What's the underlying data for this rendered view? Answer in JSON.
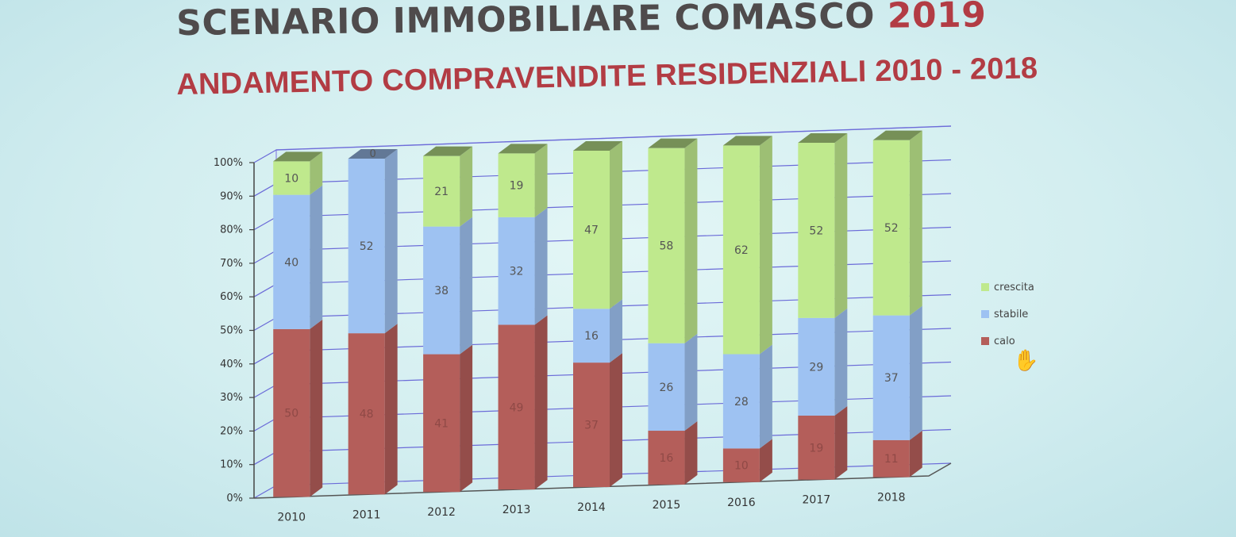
{
  "page": {
    "title_main": "SCENARIO IMMOBILIARE COMASCO",
    "title_year": "2019",
    "subtitle": "ANDAMENTO COMPRAVENDITE RESIDENZIALI 2010 - 2018"
  },
  "chart_data": {
    "type": "bar",
    "stacked": true,
    "percent_stacked": true,
    "three_d": true,
    "categories": [
      "2010",
      "2011",
      "2012",
      "2013",
      "2014",
      "2015",
      "2016",
      "2017",
      "2018"
    ],
    "series": [
      {
        "name": "calo",
        "values": [
          50,
          48,
          41,
          49,
          37,
          16,
          10,
          19,
          11
        ],
        "color": "#b45e5a",
        "label_color": "#8f4946"
      },
      {
        "name": "stabile",
        "values": [
          40,
          52,
          38,
          32,
          16,
          26,
          28,
          29,
          37
        ],
        "color": "#9ec2f2",
        "label_color": "#555555"
      },
      {
        "name": "crescita",
        "values": [
          10,
          0,
          21,
          19,
          47,
          58,
          62,
          52,
          52
        ],
        "color": "#bfe98d",
        "label_color": "#555555"
      }
    ],
    "yticks": [
      "0%",
      "10%",
      "20%",
      "30%",
      "40%",
      "50%",
      "60%",
      "70%",
      "80%",
      "90%",
      "100%"
    ],
    "ylim": [
      0,
      100
    ],
    "legend_position": "right",
    "grid": true
  },
  "colors": {
    "title": "#4f4b4c",
    "accent": "#b23c44",
    "grid": "#6b6bd8"
  },
  "icons": {
    "cursor": "hand-cursor-icon",
    "cursor_glyph": "✋"
  }
}
